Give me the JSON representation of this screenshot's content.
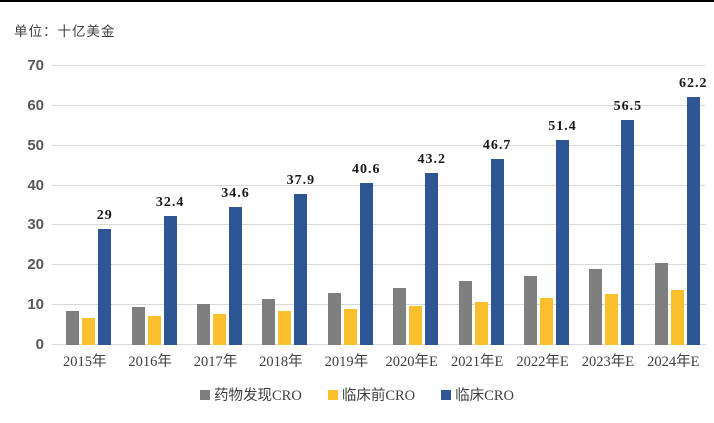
{
  "unit_label": "单位：十亿美金",
  "chart_data": {
    "type": "bar",
    "title": "单位：十亿美金",
    "categories": [
      "2015年",
      "2016年",
      "2017年",
      "2018年",
      "2019年",
      "2020年E",
      "2021年E",
      "2022年E",
      "2023年E",
      "2024年E"
    ],
    "series": [
      {
        "name": "药物发现CRO",
        "color": "#7f7f7f",
        "values": [
          8.5,
          9.5,
          10.4,
          11.5,
          13.1,
          14.3,
          16.1,
          17.4,
          19.0,
          20.5
        ],
        "labels": null
      },
      {
        "name": "临床前CRO",
        "color": "#fcbf2d",
        "values": [
          6.8,
          7.2,
          7.8,
          8.6,
          9.1,
          9.8,
          10.8,
          11.8,
          12.8,
          13.7
        ],
        "labels": null
      },
      {
        "name": "临床CRO",
        "color": "#2f5694",
        "values": [
          29,
          32.4,
          34.6,
          37.9,
          40.6,
          43.2,
          46.7,
          51.4,
          56.5,
          62.2
        ],
        "labels": [
          "29",
          "32.4",
          "34.6",
          "37.9",
          "40.6",
          "43.2",
          "46.7",
          "51.4",
          "56.5",
          "62.2"
        ]
      }
    ],
    "xlabel": "",
    "ylabel": "",
    "ylim": [
      0,
      70
    ],
    "yticks": [
      0,
      10,
      20,
      30,
      40,
      50,
      60,
      70
    ],
    "grid": true,
    "legend_position": "bottom",
    "colors": {
      "gridline": "#d9d9d9",
      "y_tick_label": "#595959",
      "x_tick_label": "#3f3f3f",
      "data_label": "#1a1a1a",
      "top_rule": "#000000",
      "background": "#ffffff"
    }
  }
}
